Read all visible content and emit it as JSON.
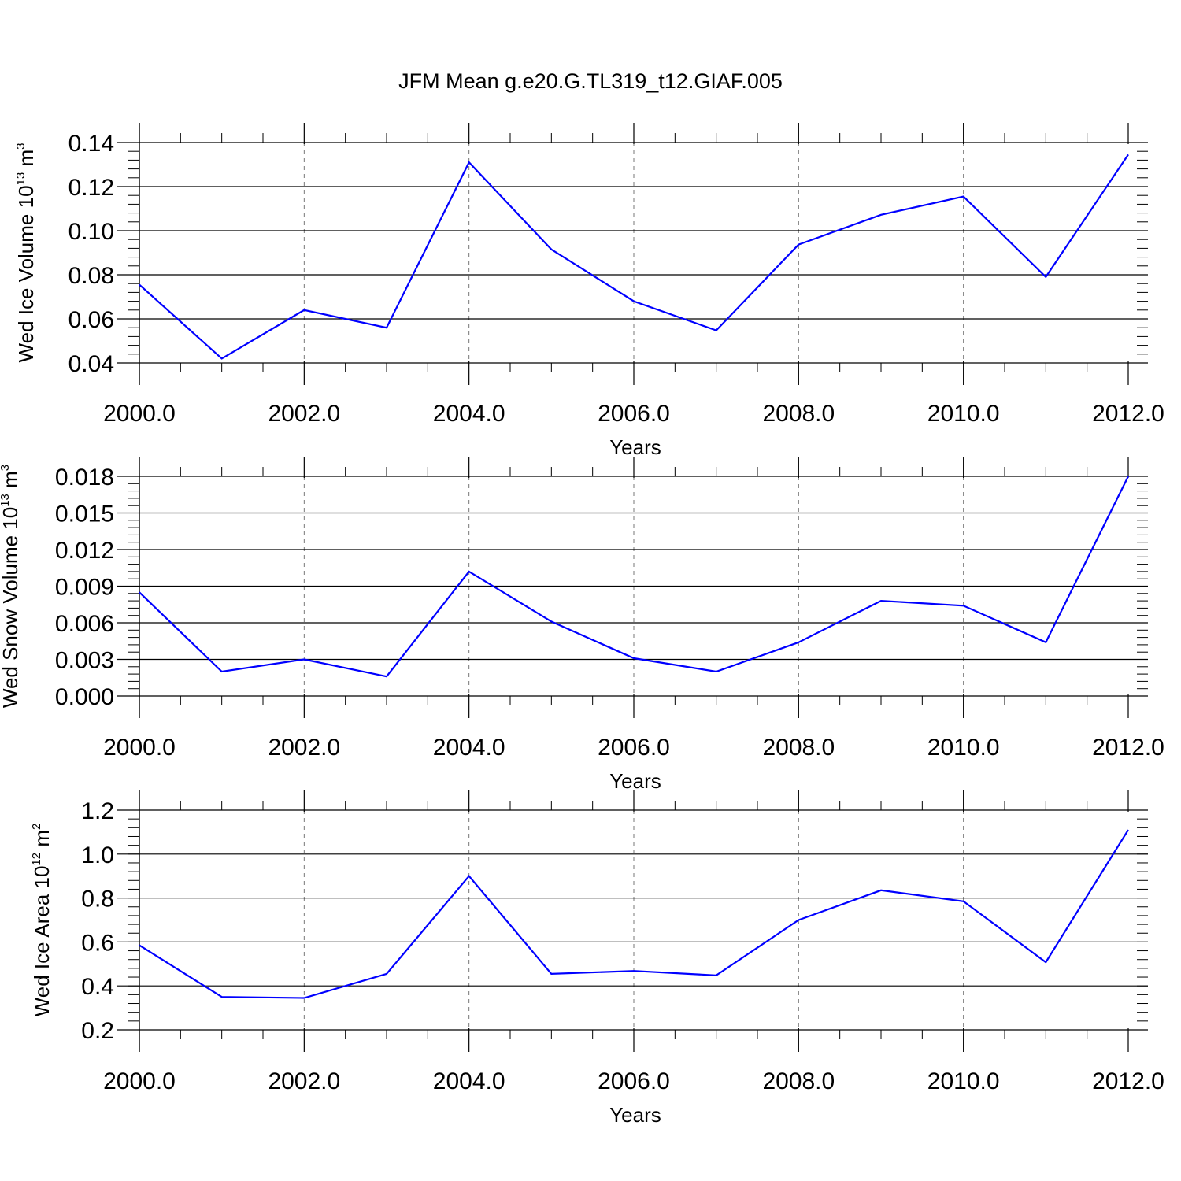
{
  "title": "JFM Mean g.e20.G.TL319_t12.GIAF.005",
  "line_color": "#0000ff",
  "chart_data": [
    {
      "type": "line",
      "xlabel": "Years",
      "ylabel": {
        "main": "Wed Ice Volume 10",
        "exp": "13",
        "unit": " m",
        "unit_exp": "3"
      },
      "xlim": [
        2000,
        2012
      ],
      "ylim": [
        0.04,
        0.14
      ],
      "xticks": [
        "2000.0",
        "2002.0",
        "2004.0",
        "2006.0",
        "2008.0",
        "2010.0",
        "2012.0"
      ],
      "yticks": [
        "0.04",
        "0.06",
        "0.08",
        "0.10",
        "0.12",
        "0.14"
      ],
      "x": [
        2000,
        2001,
        2002,
        2003,
        2004,
        2005,
        2006,
        2007,
        2008,
        2009,
        2010,
        2011,
        2012
      ],
      "values": [
        0.0755,
        0.042,
        0.064,
        0.056,
        0.131,
        0.0915,
        0.068,
        0.0548,
        0.0937,
        0.1072,
        0.1155,
        0.079,
        0.1345
      ],
      "grid": "vertical dashed at major x ticks"
    },
    {
      "type": "line",
      "xlabel": "Years",
      "ylabel": {
        "main": "Wed Snow Volume 10",
        "exp": "13",
        "unit": " m",
        "unit_exp": "3"
      },
      "xlim": [
        2000,
        2012
      ],
      "ylim": [
        0.0,
        0.018
      ],
      "xticks": [
        "2000.0",
        "2002.0",
        "2004.0",
        "2006.0",
        "2008.0",
        "2010.0",
        "2012.0"
      ],
      "yticks": [
        "0.000",
        "0.003",
        "0.006",
        "0.009",
        "0.012",
        "0.015",
        "0.018"
      ],
      "x": [
        2000,
        2001,
        2002,
        2003,
        2004,
        2005,
        2006,
        2007,
        2008,
        2009,
        2010,
        2011,
        2012
      ],
      "values": [
        0.0085,
        0.002,
        0.003,
        0.0016,
        0.0102,
        0.0061,
        0.0031,
        0.002,
        0.0044,
        0.0078,
        0.0074,
        0.0044,
        0.018
      ],
      "grid": "vertical dashed at major x ticks"
    },
    {
      "type": "line",
      "xlabel": "Years",
      "ylabel": {
        "main": "Wed Ice Area 10",
        "exp": "12",
        "unit": " m",
        "unit_exp": "2"
      },
      "xlim": [
        2000,
        2012
      ],
      "ylim": [
        0.2,
        1.2
      ],
      "xticks": [
        "2000.0",
        "2002.0",
        "2004.0",
        "2006.0",
        "2008.0",
        "2010.0",
        "2012.0"
      ],
      "yticks": [
        "0.2",
        "0.4",
        "0.6",
        "0.8",
        "1.0",
        "1.2"
      ],
      "x": [
        2000,
        2001,
        2002,
        2003,
        2004,
        2005,
        2006,
        2007,
        2008,
        2009,
        2010,
        2011,
        2012
      ],
      "values": [
        0.585,
        0.35,
        0.345,
        0.455,
        0.9,
        0.455,
        0.468,
        0.448,
        0.7,
        0.835,
        0.785,
        0.508,
        1.11
      ],
      "grid": "vertical dashed at major x ticks"
    }
  ]
}
